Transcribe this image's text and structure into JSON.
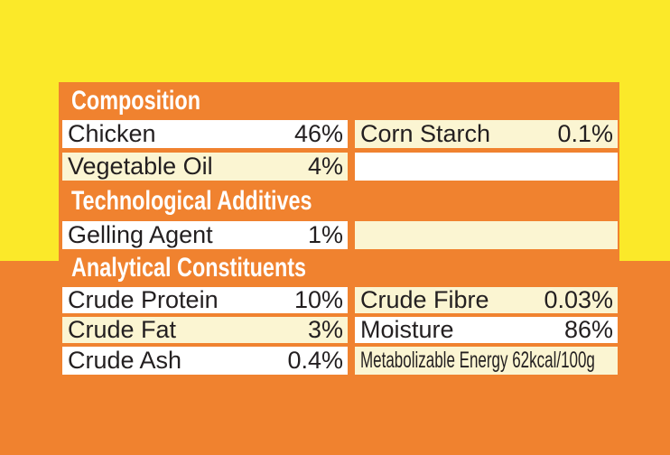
{
  "page": {
    "background_top_color": "#FBE929",
    "background_bottom_color": "#F0822F"
  },
  "table": {
    "band_color": "#F0822F",
    "row_bg_white": "#FFFFFF",
    "row_bg_cream": "#FBF5D2",
    "header_text_color": "#FFFFFF",
    "text_color": "#231F20",
    "sections": [
      {
        "header": "Composition",
        "rows": [
          {
            "left_label": "Chicken",
            "left_value": "46%",
            "right_label": "Corn Starch",
            "right_value": "0.1%"
          },
          {
            "left_label": "Vegetable Oil",
            "left_value": "4%",
            "right_label": "",
            "right_value": ""
          }
        ]
      },
      {
        "header": "Technological Additives",
        "rows": [
          {
            "left_label": "Gelling Agent",
            "left_value": "1%",
            "right_label": "",
            "right_value": ""
          }
        ]
      },
      {
        "header": "Analytical Constituents",
        "rows": [
          {
            "left_label": "Crude Protein",
            "left_value": "10%",
            "right_label": "Crude Fibre",
            "right_value": "0.03%"
          },
          {
            "left_label": "Crude Fat",
            "left_value": "3%",
            "right_label": "Moisture",
            "right_value": "86%"
          },
          {
            "left_label": "Crude Ash",
            "left_value": "0.4%",
            "right_label": "Metabolizable Energy 62kcal/100g",
            "right_value": ""
          }
        ]
      }
    ]
  }
}
